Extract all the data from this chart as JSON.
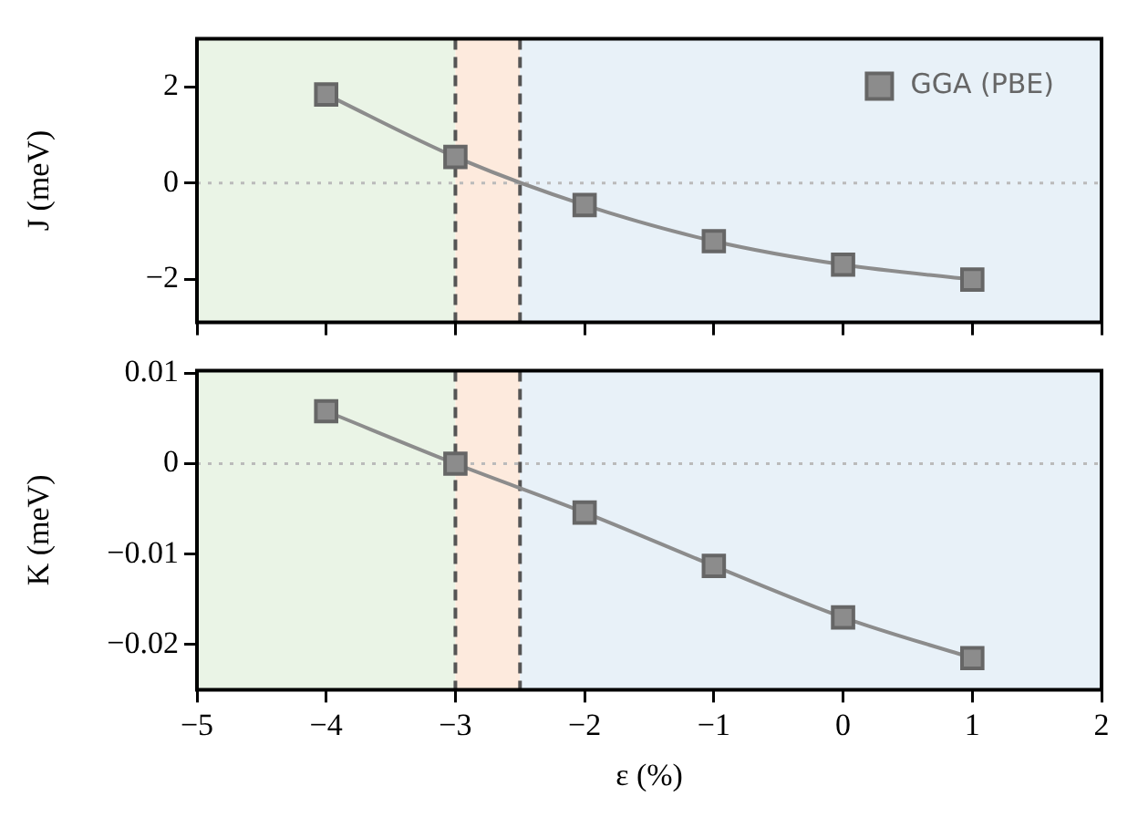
{
  "chart_data": [
    {
      "type": "line",
      "ylabel": "J (meV)",
      "x": [
        -4,
        -3,
        -2,
        -1,
        0,
        1
      ],
      "series": [
        {
          "name": "GGA (PBE)",
          "color": "#8c8c8c",
          "values": [
            1.84,
            0.54,
            -0.46,
            -1.21,
            -1.7,
            -2.01
          ]
        }
      ],
      "xlim": [
        -5,
        2
      ],
      "xticks": [
        -5,
        -4,
        -3,
        -2,
        -1,
        0,
        1,
        2
      ],
      "ylim": [
        -2.9,
        3
      ],
      "yticks": [
        -2,
        0,
        2
      ],
      "bands": [
        {
          "axis": "x",
          "from": -5,
          "to": -3,
          "color": "#eaf4e6"
        },
        {
          "axis": "x",
          "from": -3,
          "to": -2.5,
          "color": "#fdeadd"
        },
        {
          "axis": "x",
          "from": -2.5,
          "to": 2,
          "color": "#e8f1f8"
        }
      ],
      "ref_lines": [
        {
          "axis": "x",
          "value": -3,
          "color": "#555555",
          "line_style": "dashed"
        },
        {
          "axis": "x",
          "value": -2.5,
          "color": "#555555",
          "line_style": "dashed"
        },
        {
          "axis": "y",
          "value": 0,
          "color": "#bbbbbb",
          "line_style": "dotted"
        }
      ],
      "marker": "square",
      "line_style": "solid",
      "grid": false,
      "legend": "top right",
      "tick_labels": "y"
    },
    {
      "type": "line",
      "xlabel": "ε (%)",
      "ylabel": "K (meV)",
      "x": [
        -4,
        -3,
        -2,
        -1,
        0,
        1
      ],
      "series": [
        {
          "color": "#8c8c8c",
          "values": [
            0.0058,
            0,
            -0.0054,
            -0.0113,
            -0.017,
            -0.0215
          ]
        }
      ],
      "xlim": [
        -5,
        2
      ],
      "xticks": [
        -5,
        -4,
        -3,
        -2,
        -1,
        0,
        1,
        2
      ],
      "ylim": [
        -0.025,
        0.0103
      ],
      "yticks": [
        -0.02,
        -0.01,
        0,
        0.01
      ],
      "bands": [
        {
          "axis": "x",
          "from": -5,
          "to": -3,
          "color": "#eaf4e6"
        },
        {
          "axis": "x",
          "from": -3,
          "to": -2.5,
          "color": "#fdeadd"
        },
        {
          "axis": "x",
          "from": -2.5,
          "to": 2,
          "color": "#e8f1f8"
        }
      ],
      "ref_lines": [
        {
          "axis": "x",
          "value": -3,
          "color": "#555555",
          "line_style": "dashed"
        },
        {
          "axis": "x",
          "value": -2.5,
          "color": "#555555",
          "line_style": "dashed"
        },
        {
          "axis": "y",
          "value": 0,
          "color": "#bbbbbb",
          "line_style": "dotted"
        }
      ],
      "marker": "square",
      "line_style": "solid",
      "grid": false,
      "legend": false
    }
  ]
}
